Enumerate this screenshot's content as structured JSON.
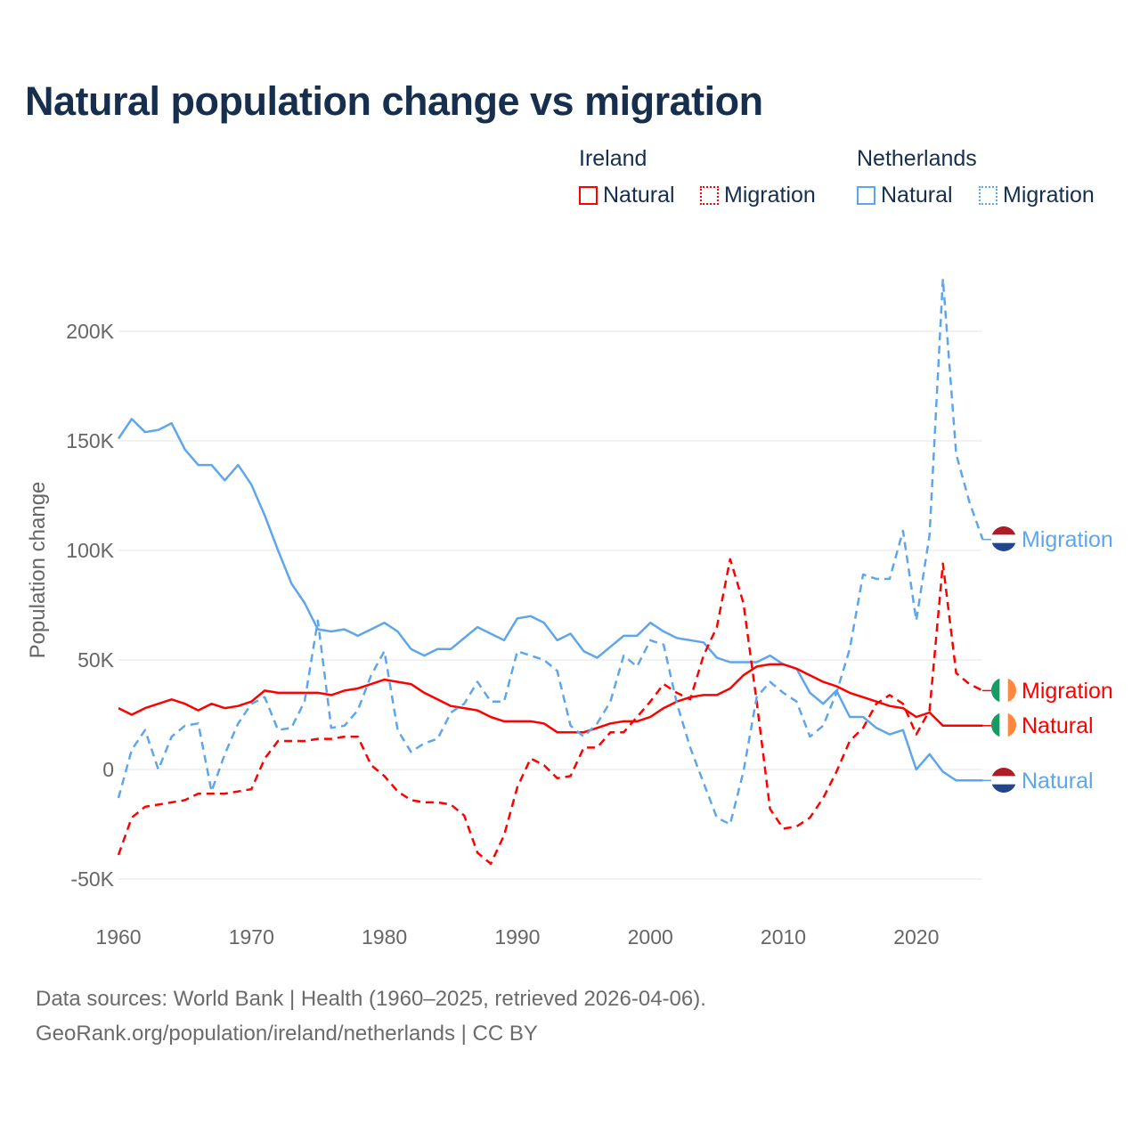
{
  "title": "Natural population change vs migration",
  "legend": {
    "groups": [
      {
        "country": "Ireland",
        "items": [
          "Natural",
          "Migration"
        ],
        "color": "#ff0000"
      },
      {
        "country": "Netherlands",
        "items": [
          "Natural",
          "Migration"
        ],
        "color": "#5ea6ec"
      }
    ]
  },
  "footer": {
    "line1": "Data sources: World Bank | Health (1960–2025, retrieved 2026-04-06).",
    "line2": "GeoRank.org/population/ireland/netherlands | CC BY"
  },
  "chart_data": {
    "type": "line",
    "title": "Natural population change vs migration",
    "xlabel": "",
    "ylabel": "Population change",
    "xlim": [
      1960,
      2025
    ],
    "ylim": [
      -50000,
      200000
    ],
    "x_ticks": [
      1960,
      1970,
      1980,
      1990,
      2000,
      2010,
      2020
    ],
    "x_tick_labels": [
      "1960",
      "1970",
      "1980",
      "1990",
      "2000",
      "2010",
      "2020"
    ],
    "y_ticks": [
      -50000,
      0,
      50000,
      100000,
      150000,
      200000
    ],
    "y_tick_labels": [
      "-50K",
      "0",
      "50K",
      "100K",
      "150K",
      "200K"
    ],
    "grid": true,
    "legend_position": "top-right",
    "x_start": 1960,
    "units": "thousands",
    "series": [
      {
        "name": "Netherlands Natural",
        "end_label": "Natural",
        "country": "Netherlands",
        "color": "#5ea6ec",
        "dashed": false,
        "values": [
          151,
          160,
          154,
          155,
          158,
          146,
          139,
          139,
          132,
          139,
          130,
          116,
          100,
          85,
          76,
          64,
          63,
          64,
          61,
          64,
          67,
          63,
          55,
          52,
          55,
          55,
          60,
          65,
          62,
          59,
          69,
          70,
          67,
          59,
          62,
          54,
          51,
          56,
          61,
          61,
          67,
          63,
          60,
          59,
          58,
          51,
          49,
          49,
          49,
          52,
          48,
          46,
          35,
          30,
          36,
          24,
          24,
          19,
          16,
          18,
          0,
          7,
          -1,
          -5,
          -5,
          -5
        ]
      },
      {
        "name": "Netherlands Migration",
        "end_label": "Migration",
        "country": "Netherlands",
        "color": "#5ea6ec",
        "dashed": true,
        "values": [
          -13,
          9,
          18,
          0,
          15,
          20,
          21,
          -10,
          7,
          21,
          30,
          33,
          18,
          19,
          31,
          68,
          19,
          20,
          27,
          43,
          54,
          18,
          8,
          12,
          14,
          26,
          30,
          40,
          31,
          31,
          54,
          52,
          50,
          45,
          20,
          15,
          21,
          31,
          52,
          47,
          59,
          57,
          30,
          10,
          -6,
          -22,
          -25,
          -1,
          33,
          40,
          35,
          31,
          15,
          20,
          35,
          55,
          89,
          87,
          87,
          109,
          68,
          107,
          224,
          144,
          122,
          105
        ]
      },
      {
        "name": "Ireland Natural",
        "end_label": "Natural",
        "country": "Ireland",
        "color": "#ff0000",
        "dashed": false,
        "values": [
          28,
          25,
          28,
          30,
          32,
          30,
          27,
          30,
          28,
          29,
          31,
          36,
          35,
          35,
          35,
          35,
          34,
          36,
          37,
          39,
          41,
          40,
          39,
          35,
          32,
          29,
          28,
          27,
          24,
          22,
          22,
          22,
          21,
          17,
          17,
          17,
          19,
          21,
          22,
          22,
          24,
          28,
          31,
          33,
          34,
          34,
          37,
          43,
          47,
          48,
          48,
          46,
          43,
          40,
          38,
          35,
          33,
          31,
          29,
          28,
          24,
          26,
          20,
          20,
          20,
          20
        ]
      },
      {
        "name": "Ireland Migration",
        "end_label": "Migration",
        "country": "Ireland",
        "color": "#ff0000",
        "dashed": true,
        "values": [
          -39,
          -22,
          -17,
          -16,
          -15,
          -14,
          -11,
          -11,
          -11,
          -10,
          -9,
          5,
          13,
          13,
          13,
          14,
          14,
          15,
          15,
          2,
          -3,
          -10,
          -14,
          -15,
          -15,
          -16,
          -21,
          -38,
          -43,
          -30,
          -8,
          5,
          2,
          -4,
          -3,
          10,
          10,
          17,
          17,
          24,
          31,
          39,
          35,
          32,
          52,
          65,
          96,
          76,
          31,
          -18,
          -27,
          -26,
          -22,
          -13,
          -1,
          13,
          19,
          30,
          34,
          30,
          16,
          27,
          94,
          44,
          39,
          36
        ]
      }
    ]
  }
}
